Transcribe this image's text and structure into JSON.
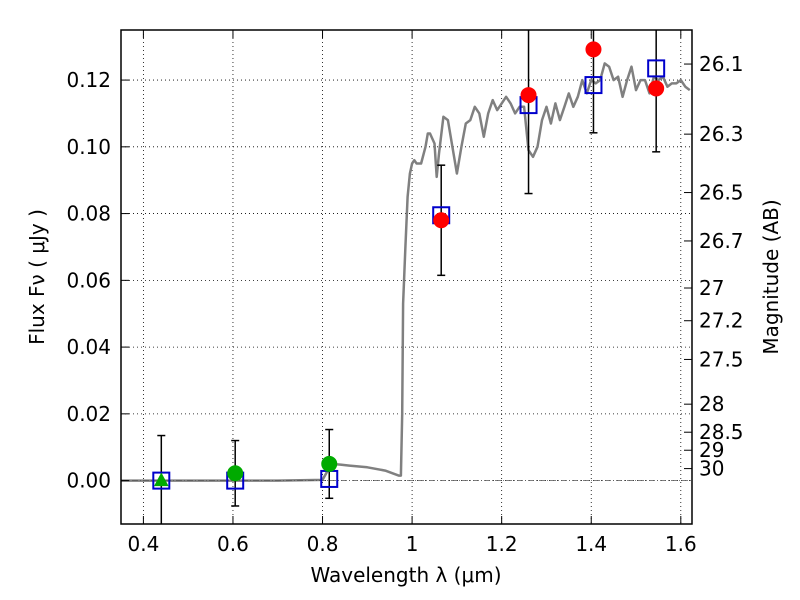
{
  "chart_data": {
    "type": "scatter",
    "xlabel": "Wavelength  λ (μm)",
    "ylabel": "Flux  Fν  ( μJy )",
    "ylabel_right": "Magnitude (AB)",
    "xlim": [
      0.35,
      1.625
    ],
    "ylim": [
      -0.013,
      0.135
    ],
    "grid": true,
    "x_ticks": [
      {
        "value": 0.4,
        "label": "0.4"
      },
      {
        "value": 0.6,
        "label": "0.6"
      },
      {
        "value": 0.8,
        "label": "0.8"
      },
      {
        "value": 1.0,
        "label": "1"
      },
      {
        "value": 1.2,
        "label": "1.2"
      },
      {
        "value": 1.4,
        "label": "1.4"
      },
      {
        "value": 1.6,
        "label": "1.6"
      }
    ],
    "y_ticks": [
      {
        "value": 0.0,
        "label": "0.00"
      },
      {
        "value": 0.02,
        "label": "0.02"
      },
      {
        "value": 0.04,
        "label": "0.04"
      },
      {
        "value": 0.06,
        "label": "0.06"
      },
      {
        "value": 0.08,
        "label": "0.08"
      },
      {
        "value": 0.1,
        "label": "0.10"
      },
      {
        "value": 0.12,
        "label": "0.12"
      }
    ],
    "right_ticks": [
      {
        "label": "26.1",
        "flux": 0.1248
      },
      {
        "label": "26.3",
        "flux": 0.1038
      },
      {
        "label": "26.5",
        "flux": 0.0863
      },
      {
        "label": "26.7",
        "flux": 0.0718
      },
      {
        "label": "27",
        "flux": 0.0577
      },
      {
        "label": "27.2",
        "flux": 0.0479
      },
      {
        "label": "27.5",
        "flux": 0.0363
      },
      {
        "label": "28",
        "flux": 0.0229
      },
      {
        "label": "28.5",
        "flux": 0.0145
      },
      {
        "label": "29",
        "flux": 0.0091
      },
      {
        "label": "30",
        "flux": 0.0036
      }
    ],
    "model_spectrum": {
      "color": "#808080",
      "x": [
        0.35,
        0.5,
        0.7,
        0.8,
        0.82,
        0.84,
        0.86,
        0.9,
        0.94,
        0.97,
        0.975,
        0.978,
        0.98,
        0.985,
        0.99,
        0.995,
        1.0,
        1.005,
        1.01,
        1.02,
        1.03,
        1.035,
        1.04,
        1.05,
        1.055,
        1.06,
        1.07,
        1.08,
        1.09,
        1.1,
        1.11,
        1.12,
        1.13,
        1.14,
        1.15,
        1.16,
        1.17,
        1.18,
        1.19,
        1.2,
        1.21,
        1.22,
        1.23,
        1.24,
        1.25,
        1.26,
        1.27,
        1.28,
        1.29,
        1.3,
        1.31,
        1.32,
        1.33,
        1.34,
        1.35,
        1.36,
        1.37,
        1.38,
        1.39,
        1.4,
        1.41,
        1.42,
        1.43,
        1.44,
        1.45,
        1.46,
        1.47,
        1.48,
        1.49,
        1.5,
        1.51,
        1.52,
        1.53,
        1.54,
        1.55,
        1.56,
        1.57,
        1.58,
        1.59,
        1.6,
        1.61,
        1.62
      ],
      "y": [
        0.0,
        0.0,
        0.0,
        0.0002,
        0.005,
        0.0048,
        0.0045,
        0.004,
        0.003,
        0.0015,
        0.0015,
        0.02,
        0.053,
        0.07,
        0.085,
        0.092,
        0.095,
        0.096,
        0.095,
        0.095,
        0.1,
        0.104,
        0.104,
        0.101,
        0.091,
        0.098,
        0.109,
        0.108,
        0.1,
        0.092,
        0.1,
        0.107,
        0.108,
        0.112,
        0.11,
        0.103,
        0.11,
        0.114,
        0.111,
        0.113,
        0.115,
        0.113,
        0.11,
        0.112,
        0.112,
        0.099,
        0.097,
        0.1,
        0.108,
        0.112,
        0.107,
        0.113,
        0.108,
        0.112,
        0.116,
        0.112,
        0.115,
        0.12,
        0.116,
        0.12,
        0.119,
        0.12,
        0.125,
        0.124,
        0.12,
        0.121,
        0.115,
        0.12,
        0.124,
        0.117,
        0.12,
        0.12,
        0.116,
        0.121,
        0.12,
        0.121,
        0.118,
        0.119,
        0.119,
        0.12,
        0.118,
        0.117
      ]
    },
    "series": [
      {
        "marker": "open-square",
        "color": "#0000cc",
        "x": [
          0.44,
          0.605,
          0.815,
          1.065,
          1.26,
          1.405,
          1.545
        ],
        "y": [
          0.0,
          0.0,
          0.0005,
          0.0795,
          0.1125,
          0.1185,
          0.1235
        ]
      },
      {
        "marker": "filled-circle",
        "color": "#ff0000",
        "x": [
          1.065,
          1.26,
          1.405,
          1.545
        ],
        "y": [
          0.078,
          0.1155,
          0.1292,
          0.1175
        ],
        "yerr": [
          0.0165,
          0.0295,
          0.025,
          0.019
        ]
      },
      {
        "marker": "filled-circle",
        "color": "#00aa00",
        "x": [
          0.605,
          0.815
        ],
        "y": [
          0.0022,
          0.005
        ],
        "yerr": [
          0.0098,
          0.0103
        ]
      },
      {
        "marker": "filled-triangle",
        "color": "#00aa00",
        "x": [
          0.44
        ],
        "y": [
          0.0
        ],
        "yerr": [
          0.0135
        ]
      }
    ],
    "zero_line": 0.0
  }
}
